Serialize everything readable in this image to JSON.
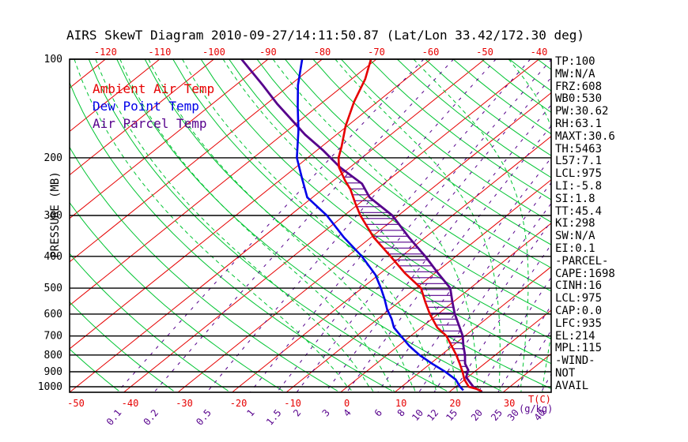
{
  "title": "AIRS SkewT Diagram 2010-09-27/14:11:50.87 (Lat/Lon 33.42/172.30 deg)",
  "chart_data": {
    "type": "line",
    "subtype": "skewt-log-p",
    "title": "AIRS SkewT Diagram 2010-09-27/14:11:50.87 (Lat/Lon 33.42/172.30 deg)",
    "pressure_axis": {
      "label": "PRESSURE (MB)",
      "ticks": [
        100,
        200,
        300,
        400,
        500,
        600,
        700,
        800,
        900,
        1000
      ],
      "range": [
        100,
        1040
      ]
    },
    "temp_axis": {
      "label": "T(C)",
      "top_ticks": [
        -120,
        -110,
        -100,
        -90,
        -80,
        -70,
        -60,
        -50,
        -40
      ],
      "bottom_ticks": [
        -50,
        -40,
        -30,
        -20,
        -10,
        0,
        10,
        20,
        30
      ]
    },
    "mixing_axis": {
      "label": "(g/kg)",
      "ticks": [
        0.1,
        0.2,
        0.5,
        1,
        1.5,
        2,
        3,
        4,
        6,
        8,
        10,
        12,
        15,
        20,
        25,
        30,
        40
      ]
    },
    "isotherms": {
      "min": -130,
      "max": 40,
      "step": 10,
      "color": "#e60000"
    },
    "dry_adiabats": {
      "theta_min": 220,
      "theta_max": 450,
      "step": 10,
      "color": "#00c432"
    },
    "moist_adiabats": {
      "theta_w": [
        0,
        4,
        8,
        12,
        16,
        20,
        24,
        28,
        32,
        36
      ],
      "color": "#00c432"
    },
    "mixing_lines_color": "#56008c",
    "grid_color": "#000000",
    "series": [
      {
        "name": "Ambient Air Temp",
        "color": "#e60000",
        "points": [
          [
            100,
            -71
          ],
          [
            115,
            -67.5
          ],
          [
            135,
            -64.3
          ],
          [
            160,
            -60.3
          ],
          [
            185,
            -56.3
          ],
          [
            200,
            -54.3
          ],
          [
            214,
            -52
          ],
          [
            235,
            -47.8
          ],
          [
            250,
            -44.8
          ],
          [
            275,
            -40.8
          ],
          [
            300,
            -37
          ],
          [
            350,
            -29.5
          ],
          [
            400,
            -22
          ],
          [
            450,
            -15.5
          ],
          [
            500,
            -9.1
          ],
          [
            550,
            -5.2
          ],
          [
            600,
            -1.5
          ],
          [
            660,
            3
          ],
          [
            700,
            6.6
          ],
          [
            750,
            9.8
          ],
          [
            800,
            12.8
          ],
          [
            850,
            15.4
          ],
          [
            900,
            17.8
          ],
          [
            950,
            19.9
          ],
          [
            1000,
            22.4
          ],
          [
            1015,
            24.3
          ],
          [
            1032,
            25.8
          ]
        ]
      },
      {
        "name": "Dew Point Temp",
        "color": "#0000e8",
        "points": [
          [
            100,
            -83.7
          ],
          [
            120,
            -78.5
          ],
          [
            140,
            -73.5
          ],
          [
            165,
            -68
          ],
          [
            200,
            -62
          ],
          [
            230,
            -56.5
          ],
          [
            264,
            -51
          ],
          [
            300,
            -43.2
          ],
          [
            350,
            -35
          ],
          [
            400,
            -27.3
          ],
          [
            455,
            -20.6
          ],
          [
            500,
            -16.5
          ],
          [
            540,
            -13.3
          ],
          [
            580,
            -10.5
          ],
          [
            620,
            -7.5
          ],
          [
            660,
            -5
          ],
          [
            700,
            -1.8
          ],
          [
            750,
            2
          ],
          [
            800,
            6
          ],
          [
            850,
            10.3
          ],
          [
            900,
            14.6
          ],
          [
            950,
            18.3
          ],
          [
            1000,
            20.8
          ],
          [
            1025,
            22.2
          ]
        ]
      },
      {
        "name": "Air Parcel Temp",
        "color": "#56008c",
        "points": [
          [
            100,
            -94.9
          ],
          [
            120,
            -85
          ],
          [
            137,
            -78
          ],
          [
            155,
            -71
          ],
          [
            170,
            -65.8
          ],
          [
            190,
            -58.8
          ],
          [
            214,
            -51.8
          ],
          [
            240,
            -44
          ],
          [
            264,
            -39.5
          ],
          [
            300,
            -31.1
          ],
          [
            350,
            -23
          ],
          [
            400,
            -15.6
          ],
          [
            450,
            -9.4
          ],
          [
            500,
            -3.7
          ],
          [
            550,
            -0.2
          ],
          [
            600,
            3.1
          ],
          [
            650,
            6.5
          ],
          [
            700,
            9.6
          ],
          [
            750,
            12
          ],
          [
            800,
            14.4
          ],
          [
            850,
            16.4
          ],
          [
            890,
            18.5
          ],
          [
            935,
            19.7
          ],
          [
            975,
            21.9
          ],
          [
            1005,
            23.5
          ],
          [
            1035,
            26
          ]
        ]
      }
    ],
    "cape_hatch": {
      "p_top": 216,
      "p_bottom": 933,
      "color": "#56008c"
    }
  },
  "panel": {
    "params": [
      "TP:100",
      "MW:N/A",
      "FRZ:608",
      "WB0:530",
      "PW:30.62",
      "RH:63.1",
      "MAXT:30.6",
      "TH:5463",
      "L57:7.1",
      "LCL:975",
      "LI:-5.8",
      "SI:1.8",
      "TT:45.4",
      "KI:298",
      "SW:N/A",
      "EI:0.1",
      "-PARCEL-",
      "CAPE:1698",
      "CINH:16",
      "LCL:975",
      "CAP:0.0",
      "LFC:935",
      "EL:214",
      "MPL:115",
      "-WIND-",
      "NOT",
      "AVAIL"
    ]
  }
}
